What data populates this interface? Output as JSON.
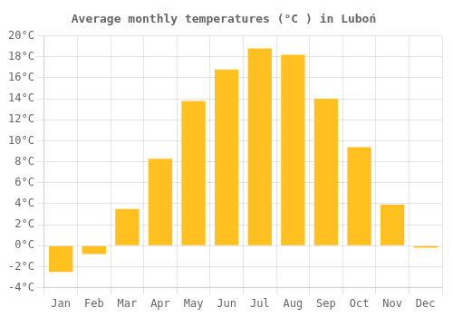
{
  "chart_data": {
    "type": "bar",
    "title": "Average monthly temperatures (°C ) in Luboń",
    "categories": [
      "Jan",
      "Feb",
      "Mar",
      "Apr",
      "May",
      "Jun",
      "Jul",
      "Aug",
      "Sep",
      "Oct",
      "Nov",
      "Dec"
    ],
    "values": [
      -2.5,
      -0.8,
      3.5,
      8.3,
      13.8,
      16.8,
      18.8,
      18.2,
      14.0,
      9.4,
      3.9,
      -0.2
    ],
    "color": "#FFC020",
    "ylim": [
      -4,
      20
    ],
    "yticks": [
      {
        "value": -4,
        "label": "-4°C"
      },
      {
        "value": -2,
        "label": "-2°C"
      },
      {
        "value": 0,
        "label": "0°C"
      },
      {
        "value": 2,
        "label": "2°C"
      },
      {
        "value": 4,
        "label": "4°C"
      },
      {
        "value": 6,
        "label": "6°C"
      },
      {
        "value": 8,
        "label": "8°C"
      },
      {
        "value": 10,
        "label": "10°C"
      },
      {
        "value": 12,
        "label": "12°C"
      },
      {
        "value": 14,
        "label": "14°C"
      },
      {
        "value": 16,
        "label": "16°C"
      },
      {
        "value": 18,
        "label": "18°C"
      },
      {
        "value": 20,
        "label": "20°C"
      }
    ],
    "grid": true
  }
}
